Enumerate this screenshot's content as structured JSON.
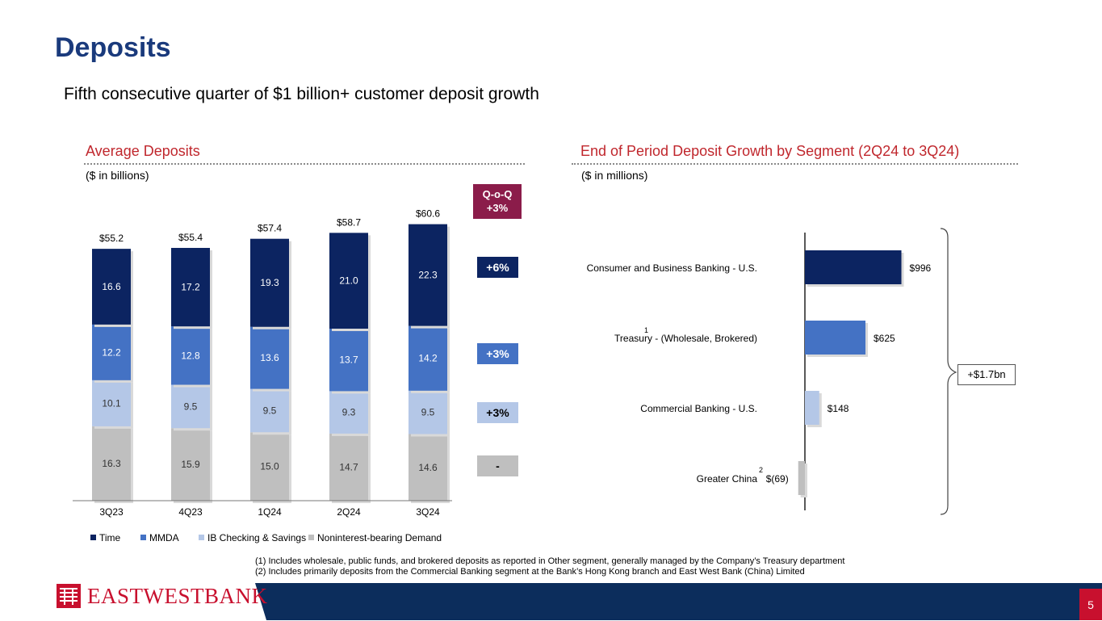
{
  "title": "Deposits",
  "subtitle": "Fifth consecutive quarter of $1 billion+ customer deposit growth",
  "colors": {
    "time": "#0c2461",
    "mmda": "#4472c4",
    "ib": "#b4c7e7",
    "nib": "#bfbfbf",
    "title": "#1a3a7c",
    "accent_red": "#c0272d",
    "qoq_box": "#8b1c4a",
    "footer": "#0c2d5c"
  },
  "left_section": {
    "title": "Average Deposits",
    "units": "($ in billions)",
    "qoq_header": {
      "line1": "Q-o-Q",
      "line2": "+3%"
    },
    "growth_tags": [
      "+6%",
      "+3%",
      "+3%",
      "-"
    ]
  },
  "right_section": {
    "title": "End of Period Deposit Growth by Segment (2Q24 to 3Q24)",
    "units": "($ in millions)",
    "total_label": "+$1.7bn",
    "footnote_marks": {
      "treasury": "1",
      "greater_china": "2"
    }
  },
  "chart_data": [
    {
      "type": "bar",
      "stacked": true,
      "title": "Average Deposits",
      "categories": [
        "3Q23",
        "4Q23",
        "1Q24",
        "2Q24",
        "3Q24"
      ],
      "series": [
        {
          "name": "Noninterest-bearing Demand",
          "color": "#bfbfbf",
          "values": [
            16.3,
            15.9,
            15.0,
            14.7,
            14.6
          ]
        },
        {
          "name": "IB Checking & Savings",
          "color": "#b4c7e7",
          "values": [
            10.1,
            9.5,
            9.5,
            9.3,
            9.5
          ]
        },
        {
          "name": "MMDA",
          "color": "#4472c4",
          "values": [
            12.2,
            12.8,
            13.6,
            13.7,
            14.2
          ]
        },
        {
          "name": "Time",
          "color": "#0c2461",
          "values": [
            16.6,
            17.2,
            19.3,
            21.0,
            22.3
          ]
        }
      ],
      "totals": [
        "$55.2",
        "$55.4",
        "$57.4",
        "$58.7",
        "$60.6"
      ],
      "legend_order": [
        "Time",
        "MMDA",
        "IB Checking & Savings",
        "Noninterest-bearing Demand"
      ],
      "ylim": [
        0,
        61
      ]
    },
    {
      "type": "bar",
      "orientation": "horizontal",
      "title": "End of Period Deposit Growth by Segment (2Q24 to 3Q24)",
      "categories": [
        "Consumer and Business Banking - U.S.",
        "Treasury - (Wholesale, Brokered)",
        "Commercial Banking - U.S.",
        "Greater China"
      ],
      "values": [
        996,
        625,
        148,
        -69
      ],
      "value_labels": [
        "$996",
        "$625",
        "$148",
        "$(69)"
      ],
      "colors": [
        "#0c2461",
        "#4472c4",
        "#b4c7e7",
        "#bfbfbf"
      ],
      "xlim": [
        -69,
        996
      ]
    }
  ],
  "footnotes": [
    "(1)   Includes wholesale, public funds, and brokered deposits as reported in Other segment, generally managed by the Company’s Treasury department",
    "(2)   Includes primarily deposits from the Commercial Banking segment at the Bank’s Hong Kong branch and East West Bank (China) Limited"
  ],
  "logo_text": "EASTWESTBANK",
  "page_number": "5"
}
